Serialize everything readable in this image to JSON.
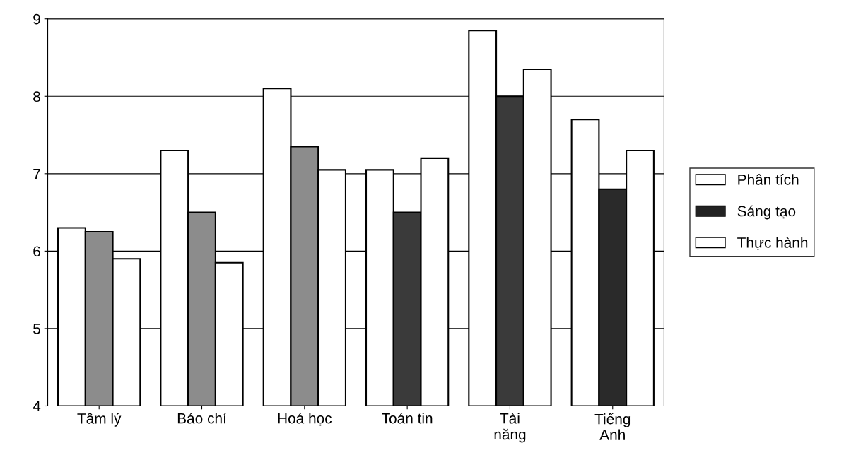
{
  "chart_data": {
    "type": "bar",
    "categories": [
      "Tâm lý",
      "Báo chí",
      "Hoá học",
      "Toán tin",
      "Tài\nnăng",
      "Tiếng\nAnh"
    ],
    "series": [
      {
        "name": "Phân tích",
        "color": "#ffffff",
        "values": [
          6.3,
          7.3,
          8.1,
          7.05,
          8.85,
          7.7
        ]
      },
      {
        "name": "Sáng tạo",
        "color": "#222222",
        "colors": [
          "#8c8c8c",
          "#8c8c8c",
          "#8c8c8c",
          "#3a3a3a",
          "#3a3a3a",
          "#2a2a2a"
        ],
        "values": [
          6.25,
          6.5,
          7.35,
          6.5,
          8.0,
          6.8
        ]
      },
      {
        "name": "Thực hành",
        "color": "#ffffff",
        "values": [
          5.9,
          5.85,
          7.05,
          7.2,
          8.35,
          7.3
        ]
      }
    ],
    "ylim": [
      4,
      9
    ],
    "yticks": [
      4,
      5,
      6,
      7,
      8,
      9
    ],
    "grid": "y",
    "legend": "right"
  }
}
